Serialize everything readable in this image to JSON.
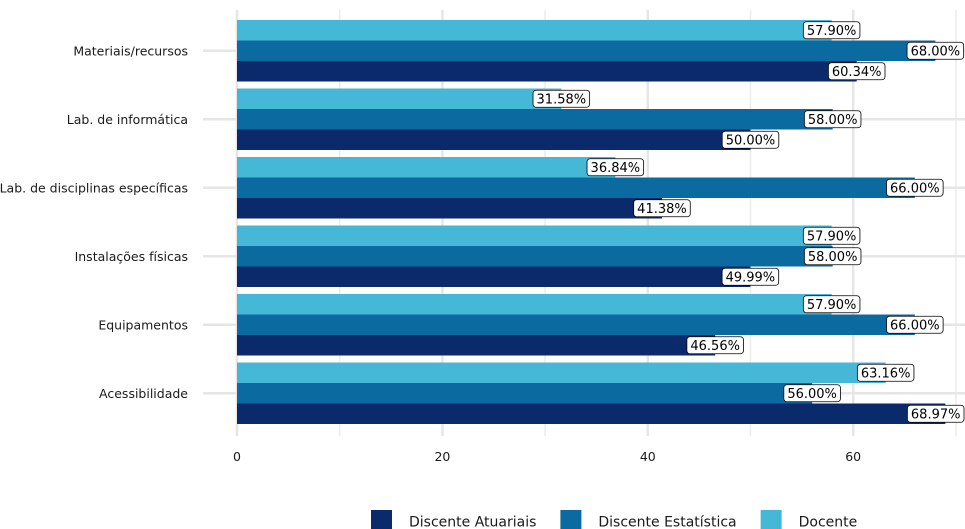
{
  "chart_data": {
    "type": "bar",
    "orientation": "horizontal",
    "categories": [
      "Materiais/recursos",
      "Lab. de informática",
      "Lab. de disciplinas específicas",
      "Instalações físicas",
      "Equipamentos",
      "Acessibilidade"
    ],
    "series": [
      {
        "name": "Docente",
        "color": "#45b8d8",
        "values": [
          57.9,
          31.58,
          36.84,
          57.9,
          57.9,
          63.16
        ],
        "labels": [
          "57.90%",
          "31.58%",
          "36.84%",
          "57.90%",
          "57.90%",
          "63.16%"
        ]
      },
      {
        "name": "Discente Estatística",
        "color": "#0b6aa0",
        "values": [
          68.0,
          58.0,
          66.0,
          58.0,
          66.0,
          56.0
        ],
        "labels": [
          "68.00%",
          "58.00%",
          "66.00%",
          "58.00%",
          "66.00%",
          "56.00%"
        ]
      },
      {
        "name": "Discente Atuariais",
        "color": "#0b2a6b",
        "values": [
          60.34,
          50.0,
          41.38,
          49.99,
          46.56,
          68.97
        ],
        "labels": [
          "60.34%",
          "50.00%",
          "41.38%",
          "49.99%",
          "46.56%",
          "68.97%"
        ]
      }
    ],
    "x_ticks": [
      0,
      20,
      40,
      60
    ],
    "x_tick_labels": [
      "0",
      "20",
      "40",
      "60"
    ],
    "xlim": [
      0,
      70
    ],
    "title": "",
    "xlabel": "",
    "ylabel": "",
    "grid": true,
    "legend_position": "bottom",
    "legend_order": [
      "Discente Atuariais",
      "Discente Estatística",
      "Docente"
    ]
  }
}
